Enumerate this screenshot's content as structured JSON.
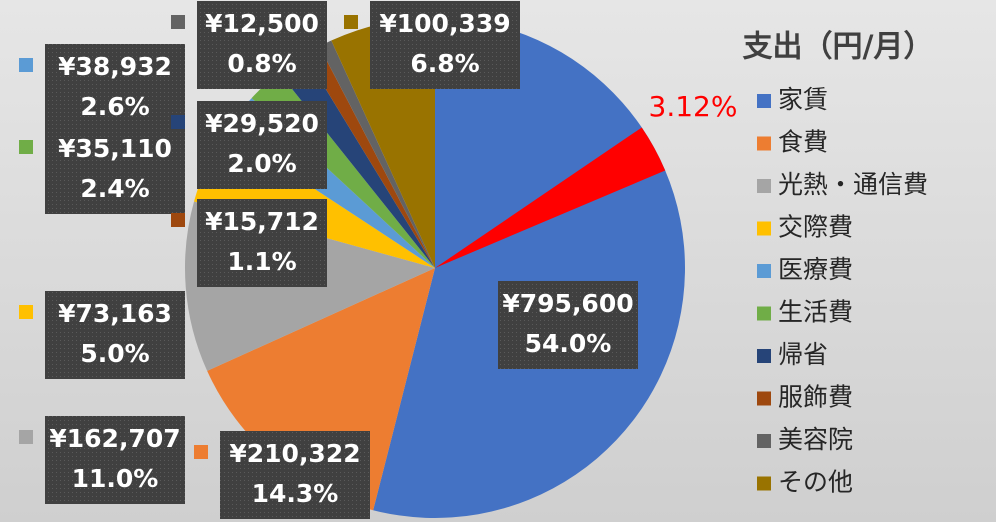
{
  "chart_data": {
    "type": "pie",
    "title": "支出（円/月）",
    "categories": [
      "家賃",
      "食費",
      "光熱・通信費",
      "交際費",
      "医療費",
      "生活費",
      "帰省",
      "服飾費",
      "美容院",
      "その他"
    ],
    "values": [
      795600,
      210322,
      162707,
      73163,
      38932,
      35110,
      29520,
      15712,
      12500,
      100339
    ],
    "value_labels": [
      "¥795,600",
      "¥210,322",
      "¥162,707",
      "¥73,163",
      "¥38,932",
      "¥35,110",
      "¥29,520",
      "¥15,712",
      "¥12,500",
      "¥100,339"
    ],
    "percent_labels": [
      "54.0%",
      "14.3%",
      "11.0%",
      "5.0%",
      "2.6%",
      "2.4%",
      "2.0%",
      "1.1%",
      "0.8%",
      "6.8%"
    ],
    "colors": [
      "#4472c4",
      "#ed7d31",
      "#a5a5a5",
      "#ffc000",
      "#5b9bd5",
      "#70ad47",
      "#264478",
      "#9e480e",
      "#636363",
      "#997300"
    ],
    "highlight": {
      "value": 3.12,
      "label": "3.12%",
      "color": "#ff0000"
    },
    "legend": "right"
  }
}
